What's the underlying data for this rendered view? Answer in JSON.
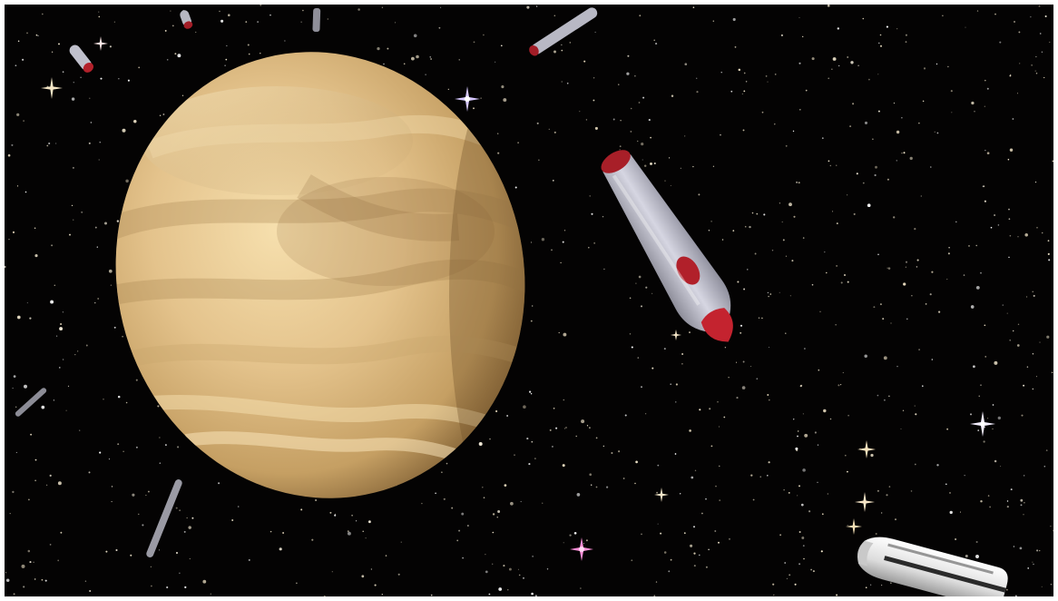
{
  "scene": {
    "subject": "space-scene",
    "colors": {
      "space": "#040303",
      "planet_light": "#f2d9a0",
      "planet_mid": "#d9b57a",
      "planet_dark": "#8a6a3c",
      "capsule_body": "#b9b9c6",
      "capsule_tip": "#b1202a",
      "star": "#f4e9cf",
      "star_violet": "#c9b4ff",
      "star_pink": "#ff9be0"
    },
    "objects": [
      {
        "name": "planet",
        "icon": "venus-planet"
      },
      {
        "name": "capsule-large",
        "icon": "rocket-capsule"
      },
      {
        "name": "booster",
        "icon": "white-booster"
      },
      {
        "name": "capsule-small",
        "icon": "rocket-capsule"
      },
      {
        "name": "debris",
        "icon": "debris-pieces"
      }
    ]
  }
}
